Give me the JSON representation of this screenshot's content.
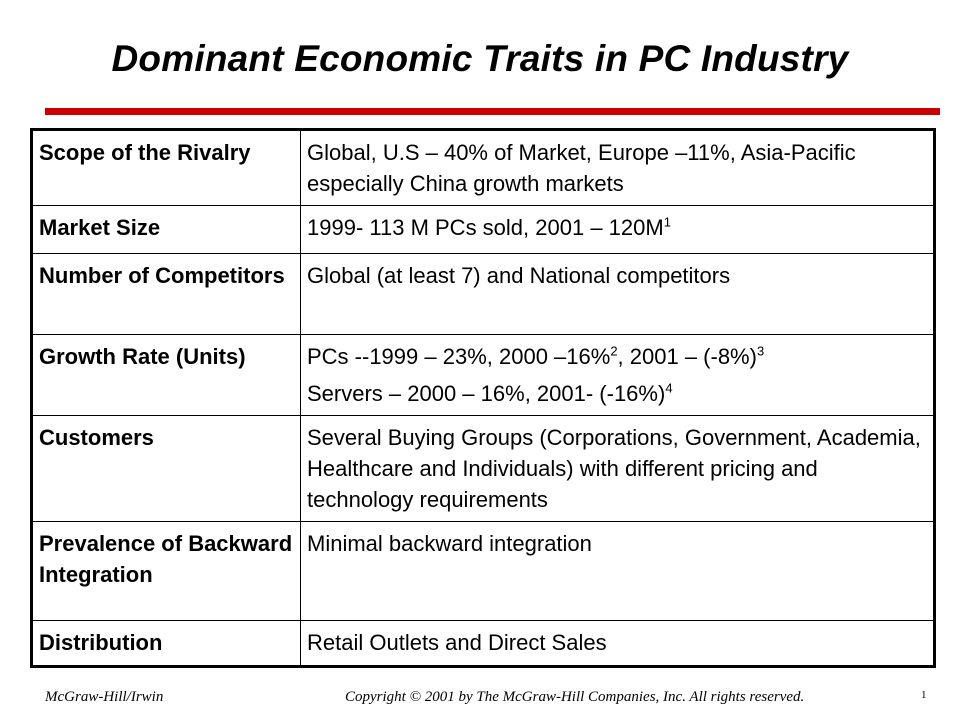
{
  "slide": {
    "title": "Dominant Economic Traits in PC Industry",
    "accent_color": "#cc0000"
  },
  "rows": [
    {
      "label": "Scope of the Rivalry",
      "lines": [
        {
          "text": "Global, U.S – 40% of Market, Europe –11%, Asia-Pacific especially China growth markets"
        }
      ]
    },
    {
      "label": "Market Size",
      "lines": [
        {
          "text": "1999- 113 M PCs sold, 2001 – 120M",
          "note": "1"
        }
      ]
    },
    {
      "label": "Number of Competitors",
      "lines": [
        {
          "text": "Global (at least 7) and National competitors"
        }
      ]
    },
    {
      "label": "Growth Rate (Units)",
      "lines": [
        {
          "parts": [
            {
              "t": "PCs --1999 – 23%, 2000 –16%"
            },
            {
              "sup": "2"
            },
            {
              "t": ", 2001 – (-8%)"
            },
            {
              "sup": "3"
            }
          ]
        },
        {
          "parts": [
            {
              "t": "Servers – 2000 – 16%, 2001- (-16%)"
            },
            {
              "sup": "4"
            }
          ]
        }
      ]
    },
    {
      "label": "Customers",
      "lines": [
        {
          "text": "Several Buying Groups (Corporations, Government, Academia, Healthcare and Individuals) with different pricing and technology requirements"
        }
      ]
    },
    {
      "label": "Prevalence of Backward Integration",
      "lines": [
        {
          "text": "Minimal backward integration"
        }
      ]
    },
    {
      "label": "Distribution",
      "lines": [
        {
          "text": "Retail Outlets and Direct Sales"
        }
      ]
    }
  ],
  "footer": {
    "publisher": "McGraw-Hill/Irwin",
    "copyright": "Copyright © 2001 by The McGraw-Hill Companies, Inc.  All rights reserved.",
    "page_number": "1"
  }
}
